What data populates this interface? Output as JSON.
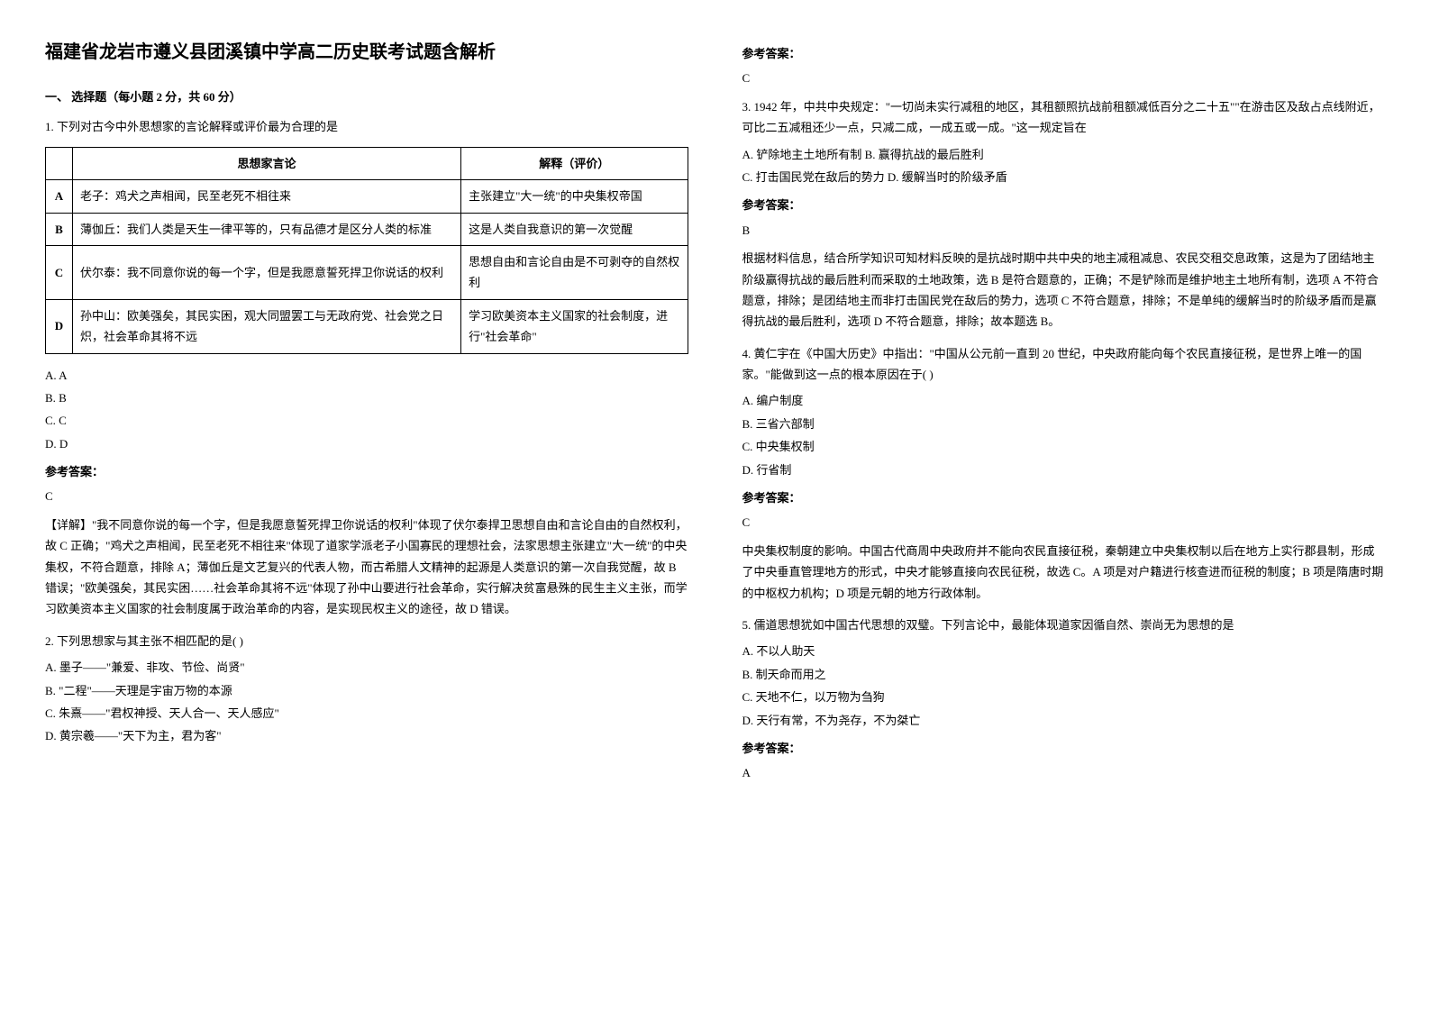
{
  "title": "福建省龙岩市遵义县团溪镇中学高二历史联考试题含解析",
  "section_header": "一、 选择题（每小题 2 分，共 60 分）",
  "q1": {
    "intro": "1. 下列对古今中外思想家的言论解释或评价最为合理的是",
    "table": {
      "headers": [
        "",
        "思想家言论",
        "解释（评价）"
      ],
      "rows": [
        [
          "A",
          "老子：鸡犬之声相闻，民至老死不相往来",
          "主张建立\"大一统\"的中央集权帝国"
        ],
        [
          "B",
          "薄伽丘：我们人类是天生一律平等的，只有品德才是区分人类的标准",
          "这是人类自我意识的第一次觉醒"
        ],
        [
          "C",
          "伏尔泰：我不同意你说的每一个字，但是我愿意誓死捍卫你说话的权利",
          "思想自由和言论自由是不可剥夺的自然权利"
        ],
        [
          "D",
          "孙中山：欧美强矣，其民实困，观大同盟罢工与无政府党、社会党之日炽，社会革命其将不远",
          "学习欧美资本主义国家的社会制度，进行\"社会革命\""
        ]
      ]
    },
    "options": [
      "A. A",
      "B. B",
      "C. C",
      "D. D"
    ],
    "answer_label": "参考答案：",
    "answer": "C",
    "explanation": "【详解】\"我不同意你说的每一个字，但是我愿意誓死捍卫你说话的权利\"体现了伏尔泰捍卫思想自由和言论自由的自然权利，故 C 正确；\"鸡犬之声相闻，民至老死不相往来\"体现了道家学派老子小国寡民的理想社会，法家思想主张建立\"大一统\"的中央集权，不符合题意，排除 A；薄伽丘是文艺复兴的代表人物，而古希腊人文精神的起源是人类意识的第一次自我觉醒，故 B 错误；\"欧美强矣，其民实困……社会革命其将不远\"体现了孙中山要进行社会革命，实行解决贫富悬殊的民生主义主张，而学习欧美资本主义国家的社会制度属于政治革命的内容，是实现民权主义的途径，故 D 错误。"
  },
  "q2": {
    "intro": "2. 下列思想家与其主张不相匹配的是(    )",
    "options": [
      "A. 墨子——\"兼爱、非攻、节俭、尚贤\"",
      "B. \"二程\"——天理是宇宙万物的本源",
      "C. 朱熹——\"君权神授、天人合一、天人感应\"",
      "D. 黄宗羲——\"天下为主，君为客\""
    ],
    "answer_label": "参考答案：",
    "answer": "C"
  },
  "q3": {
    "intro": "3. 1942 年，中共中央规定：\"一切尚未实行减租的地区，其租额照抗战前租额减低百分之二十五\"\"在游击区及敌占点线附近，可比二五减租还少一点，只减二成，一成五或一成。\"这一规定旨在",
    "options_inline": "A. 铲除地主土地所有制        B. 赢得抗战的最后胜利",
    "options_inline2": "C. 打击国民党在敌后的势力   D. 缓解当时的阶级矛盾",
    "answer_label": "参考答案：",
    "answer": "B",
    "explanation": "根据材料信息，结合所学知识可知材料反映的是抗战时期中共中央的地主减租减息、农民交租交息政策，这是为了团结地主阶级赢得抗战的最后胜利而采取的土地政策，选 B 是符合题意的，正确；不是铲除而是维护地主土地所有制，选项 A 不符合题意，排除；是团结地主而非打击国民党在敌后的势力，选项 C 不符合题意，排除；不是单纯的缓解当时的阶级矛盾而是赢得抗战的最后胜利，选项 D 不符合题意，排除；故本题选 B。"
  },
  "q4": {
    "intro": "4. 黄仁宇在《中国大历史》中指出：\"中国从公元前一直到 20 世纪，中央政府能向每个农民直接征税，是世界上唯一的国家。\"能做到这一点的根本原因在于(    )",
    "options": [
      "A. 编户制度",
      "B. 三省六部制",
      "C. 中央集权制",
      "D. 行省制"
    ],
    "answer_label": "参考答案：",
    "answer": "C",
    "explanation": "中央集权制度的影响。中国古代商周中央政府并不能向农民直接征税，秦朝建立中央集权制以后在地方上实行郡县制，形成了中央垂直管理地方的形式，中央才能够直接向农民征税，故选 C。A 项是对户籍进行核查进而征税的制度；B 项是隋唐时期的中枢权力机构；D 项是元朝的地方行政体制。"
  },
  "q5": {
    "intro": "5. 儒道思想犹如中国古代思想的双璧。下列言论中，最能体现道家因循自然、崇尚无为思想的是",
    "options": [
      "A. 不以人助天",
      "B. 制天命而用之",
      "C. 天地不仁，以万物为刍狗",
      "D. 天行有常，不为尧存，不为桀亡"
    ],
    "answer_label": "参考答案：",
    "answer": "A"
  }
}
